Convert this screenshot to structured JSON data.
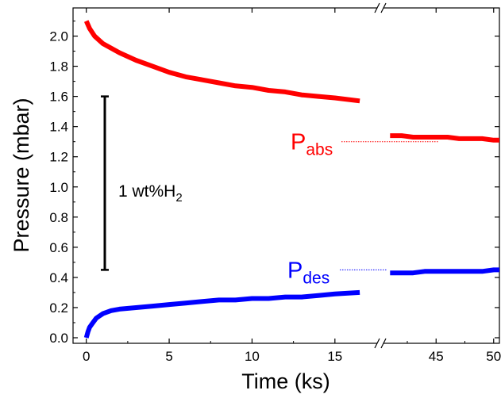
{
  "chart_data": {
    "type": "line",
    "xlabel": "Time (ks)",
    "ylabel": "Pressure (mbar)",
    "ylim": [
      0,
      2.1
    ],
    "y_ticks": [
      "0.0",
      "0.2",
      "0.4",
      "0.6",
      "0.8",
      "1.0",
      "1.2",
      "1.4",
      "1.6",
      "1.8",
      "2.0"
    ],
    "x_axis": {
      "broken": true,
      "segment1": {
        "xlim": [
          -0.8,
          17.5
        ],
        "ticks": [
          "0",
          "5",
          "10",
          "15"
        ]
      },
      "segment2": {
        "xlim": [
          40.5,
          50.5
        ],
        "ticks": [
          "45",
          "50"
        ]
      }
    },
    "grid": false,
    "series": [
      {
        "name": "Pabs",
        "label_main": "P",
        "label_sub": "abs",
        "color": "#ff0000",
        "x": [
          0,
          0.2,
          0.5,
          1,
          1.5,
          2,
          3,
          4,
          5,
          6,
          7,
          8,
          9,
          10,
          11,
          12,
          13,
          14,
          15,
          16.5,
          41,
          42,
          43,
          44,
          45,
          46,
          47,
          48,
          49,
          50,
          50.5
        ],
        "y": [
          2.1,
          2.05,
          2.0,
          1.95,
          1.92,
          1.89,
          1.84,
          1.8,
          1.76,
          1.73,
          1.71,
          1.69,
          1.67,
          1.66,
          1.64,
          1.63,
          1.61,
          1.6,
          1.59,
          1.57,
          1.34,
          1.34,
          1.33,
          1.33,
          1.33,
          1.33,
          1.32,
          1.32,
          1.32,
          1.31,
          1.31
        ]
      },
      {
        "name": "Pdes",
        "label_main": "P",
        "label_sub": "des",
        "color": "#0000ff",
        "x": [
          0,
          0.1,
          0.2,
          0.4,
          0.6,
          1,
          1.5,
          2,
          3,
          4,
          5,
          6,
          7,
          8,
          9,
          10,
          11,
          12,
          13,
          14,
          15,
          16.5,
          41,
          42,
          43,
          44,
          45,
          46,
          47,
          48,
          49,
          50,
          50.5
        ],
        "y": [
          0.0,
          0.04,
          0.07,
          0.1,
          0.13,
          0.16,
          0.18,
          0.19,
          0.2,
          0.21,
          0.22,
          0.23,
          0.24,
          0.25,
          0.25,
          0.26,
          0.26,
          0.27,
          0.27,
          0.28,
          0.29,
          0.3,
          0.43,
          0.43,
          0.43,
          0.44,
          0.44,
          0.44,
          0.44,
          0.44,
          0.44,
          0.45,
          0.45
        ]
      }
    ],
    "annotations": {
      "scale_bar": {
        "label_main": "1 wt%H",
        "label_sub": "2",
        "x": 1.7,
        "y_range": [
          0.45,
          1.6
        ]
      },
      "pabs_guide_y": 1.3,
      "pdes_guide_y": 0.45
    }
  }
}
